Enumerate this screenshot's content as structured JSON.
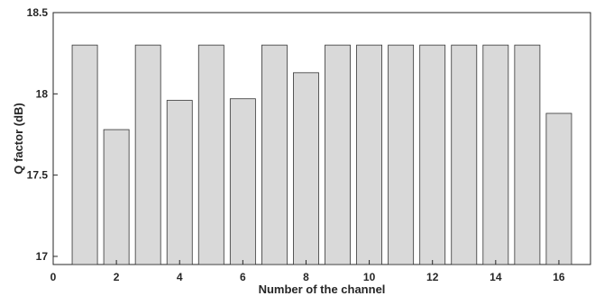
{
  "chart_data": {
    "type": "bar",
    "title": "",
    "xlabel": "Number of the channel",
    "ylabel": "Q factor (dB)",
    "categories": [
      "1",
      "2",
      "3",
      "4",
      "5",
      "6",
      "7",
      "8",
      "9",
      "10",
      "11",
      "12",
      "13",
      "14",
      "15",
      "16"
    ],
    "values": [
      18.3,
      17.78,
      18.3,
      17.96,
      18.3,
      17.97,
      18.3,
      18.13,
      18.3,
      18.3,
      18.3,
      18.3,
      18.3,
      18.3,
      18.3,
      17.88
    ],
    "xlim": [
      0,
      17
    ],
    "ylim": [
      16.95,
      18.5
    ],
    "xticks": [
      "0",
      "2",
      "4",
      "6",
      "8",
      "10",
      "12",
      "14",
      "16"
    ],
    "yticks": [
      "17",
      "17.5",
      "18",
      "18.5"
    ],
    "grid": false,
    "bar_color": "#d9d9d9",
    "bar_edge_color": "#333333"
  }
}
